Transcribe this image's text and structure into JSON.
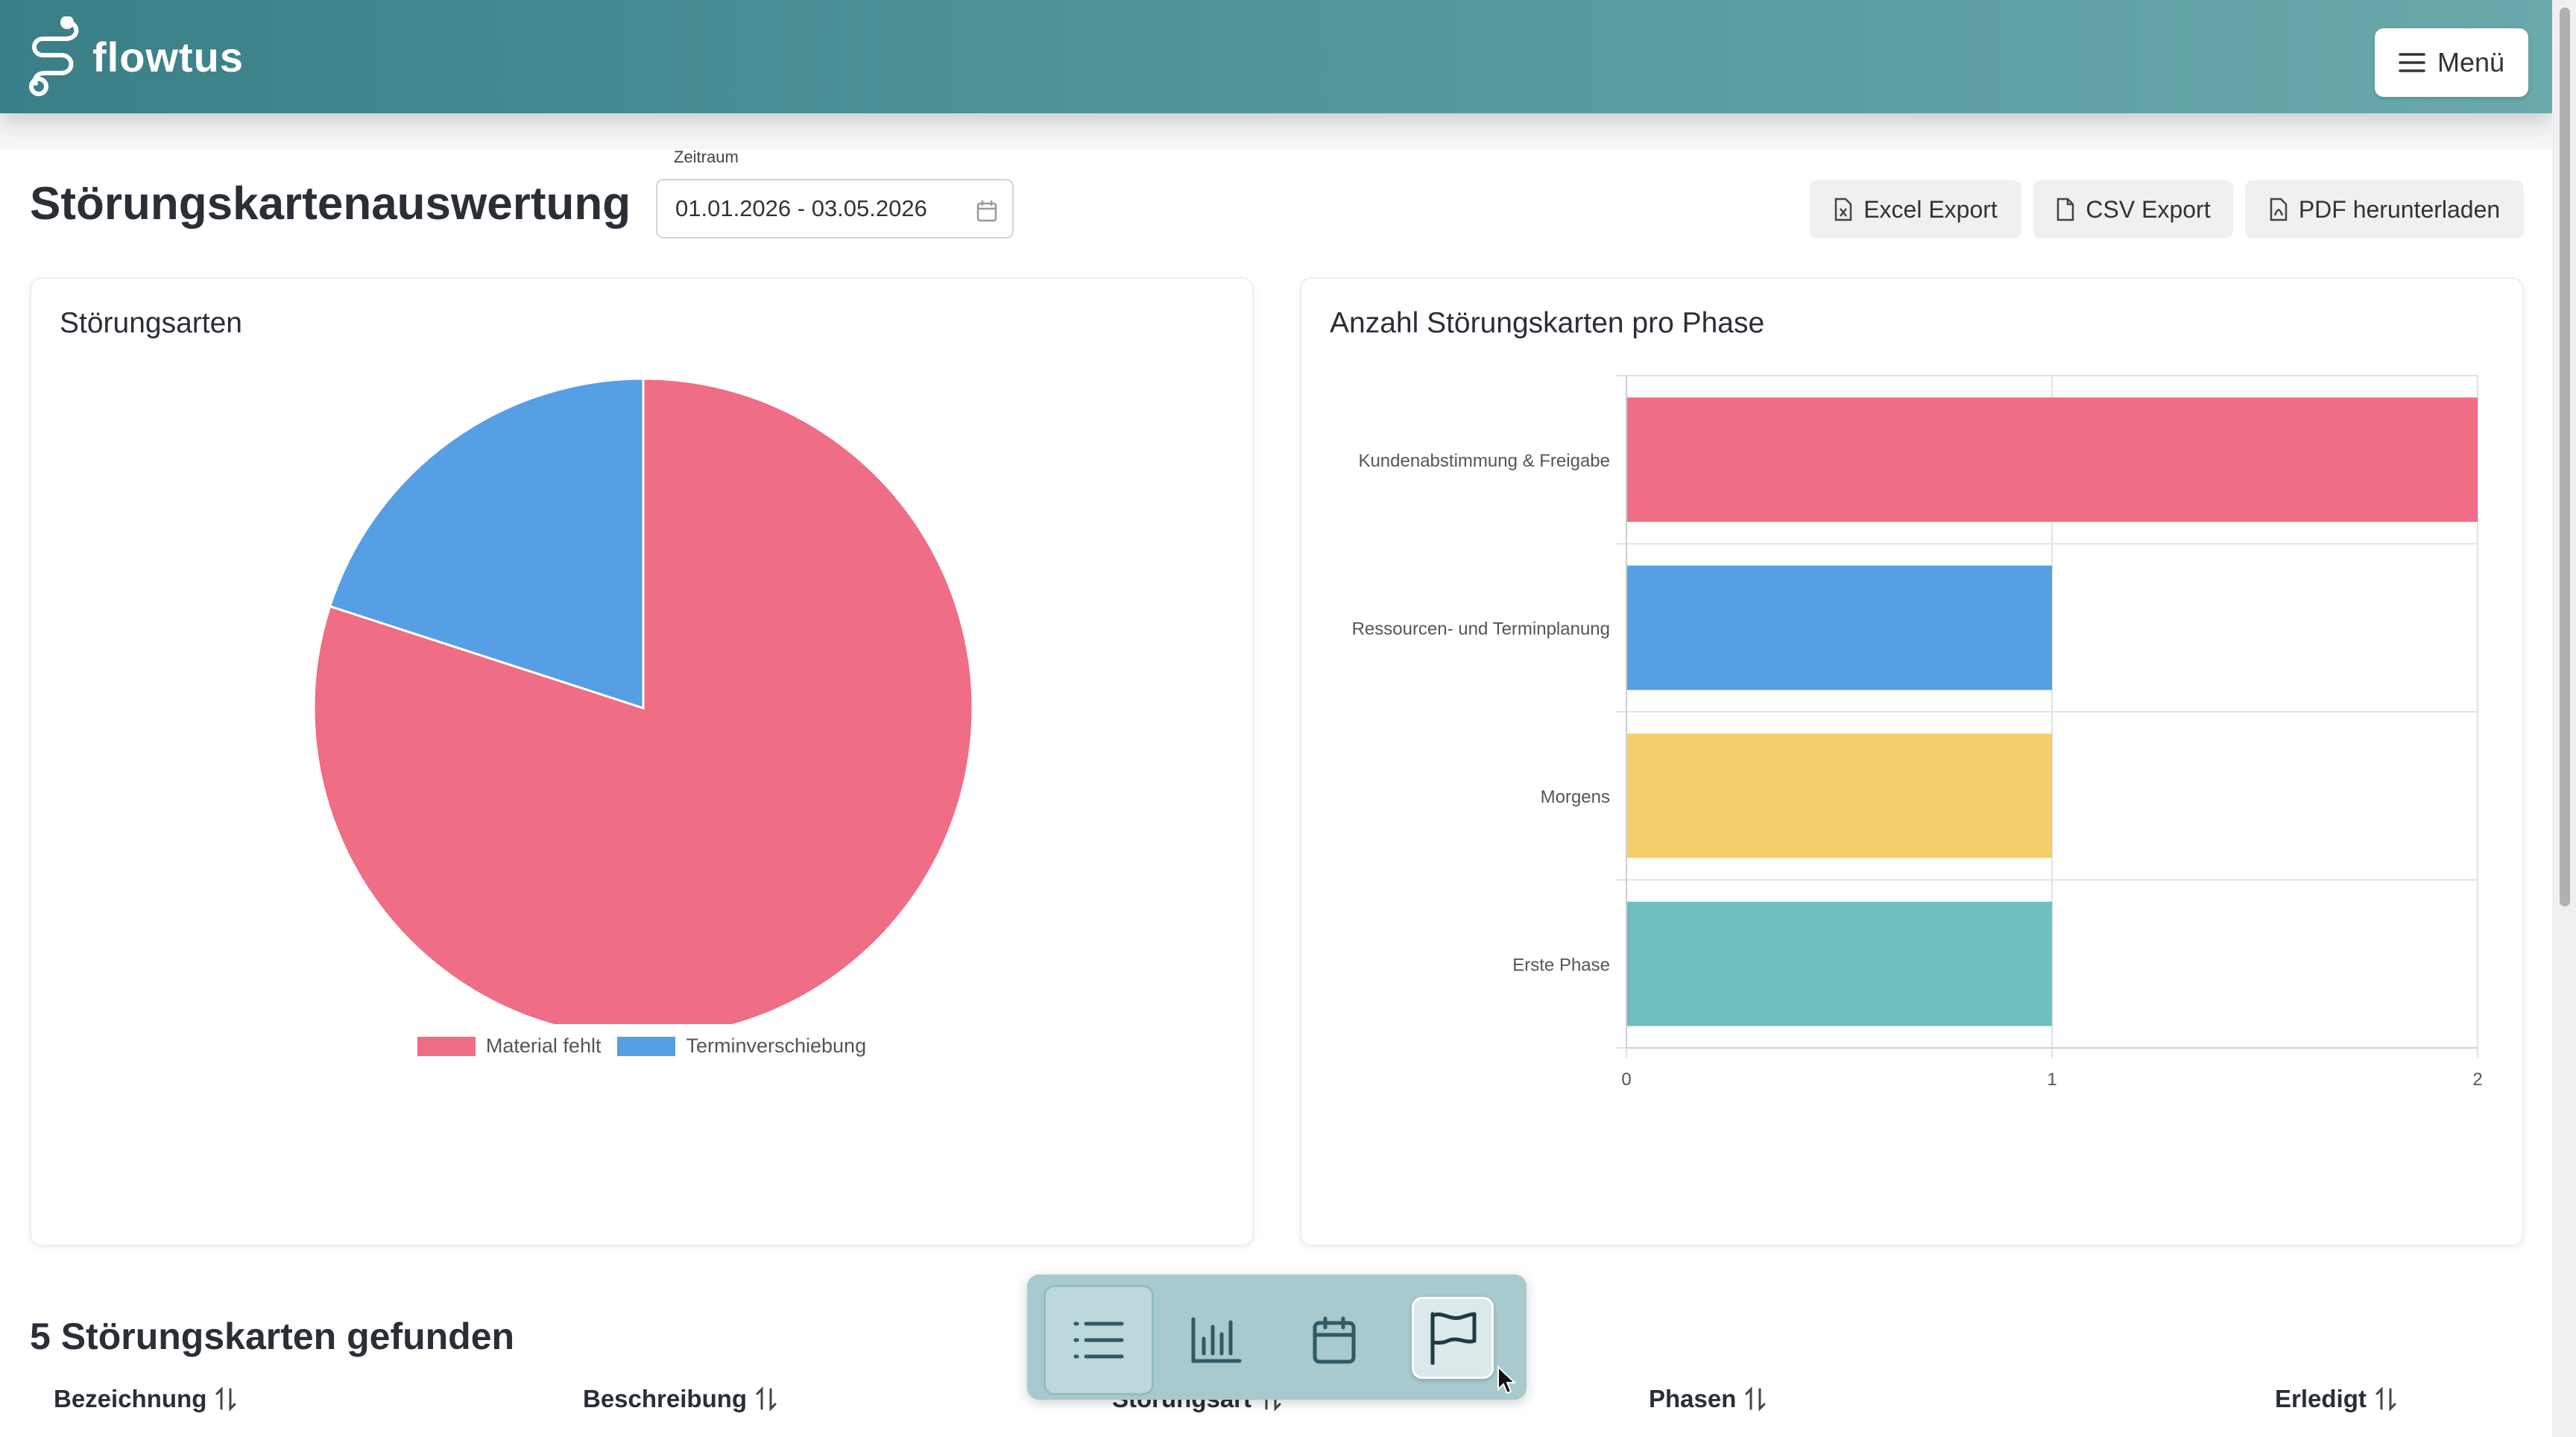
{
  "header": {
    "app_name": "flowtus",
    "menu_label": "Menü"
  },
  "page": {
    "title": "Störungskartenauswertung",
    "date_range": {
      "label": "Zeitraum",
      "value": "01.01.2026 - 03.05.2026"
    },
    "exports": [
      {
        "label": "Excel Export",
        "icon": "excel-file-icon"
      },
      {
        "label": "CSV Export",
        "icon": "file-icon"
      },
      {
        "label": "PDF herunterladen",
        "icon": "pdf-file-icon"
      }
    ]
  },
  "pie_card": {
    "title": "Störungsarten"
  },
  "bar_card": {
    "title": "Anzahl Störungskarten pro Phase"
  },
  "chart_data": [
    {
      "type": "pie",
      "labels": [
        "Material fehlt",
        "Terminverschiebung"
      ],
      "values": [
        4,
        1
      ],
      "colors": [
        "#ef6d85",
        "#579fe4"
      ],
      "legend": "bottom"
    },
    {
      "type": "bar",
      "orientation": "horizontal",
      "categories": [
        "Kundenabstimmung & Freigabe",
        "Ressourcen- und Terminplanung",
        "Morgens",
        "Erste Phase"
      ],
      "values": [
        2,
        1,
        1,
        1
      ],
      "colors": [
        "#ef6d85",
        "#579fe4",
        "#f6cf6b",
        "#6fbfbf"
      ],
      "xlim": [
        0,
        2
      ],
      "xticks": [
        "0",
        "1",
        "2"
      ],
      "grid": true
    }
  ],
  "results": {
    "title": "5 Störungskarten gefunden",
    "columns": [
      "Bezeichnung",
      "Beschreibung",
      "Störungsart",
      "Phasen",
      "Erledigt"
    ]
  },
  "bottom_nav": [
    "list-icon",
    "bar-chart-icon",
    "calendar-icon",
    "flag-icon"
  ]
}
